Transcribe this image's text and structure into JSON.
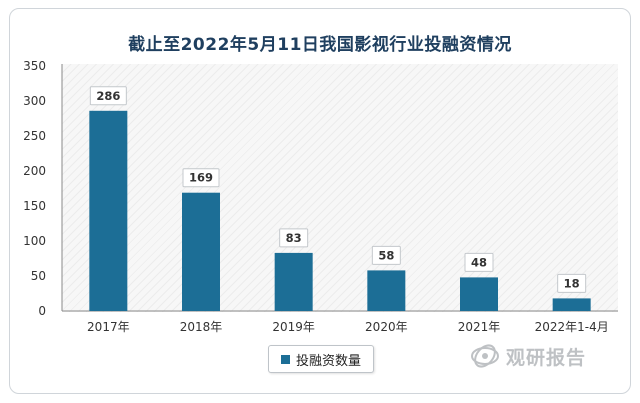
{
  "colors": {
    "bar": "#1c6e96",
    "axis": "#8a8a8a",
    "title": "#1f3f5f"
  },
  "chart_data": {
    "type": "bar",
    "title": "截止至2022年5月11日我国影视行业投融资情况",
    "categories": [
      "2017年",
      "2018年",
      "2019年",
      "2020年",
      "2021年",
      "2022年1-4月"
    ],
    "series": [
      {
        "name": "投融资数量",
        "values": [
          286,
          169,
          83,
          58,
          48,
          18
        ]
      }
    ],
    "ylim": [
      0,
      350
    ],
    "yticks": [
      0,
      50,
      100,
      150,
      200,
      250,
      300,
      350
    ],
    "xlabel": "",
    "ylabel": "",
    "legend_position": "bottom-center",
    "grid": false
  },
  "watermark": {
    "text": "观研报告"
  }
}
